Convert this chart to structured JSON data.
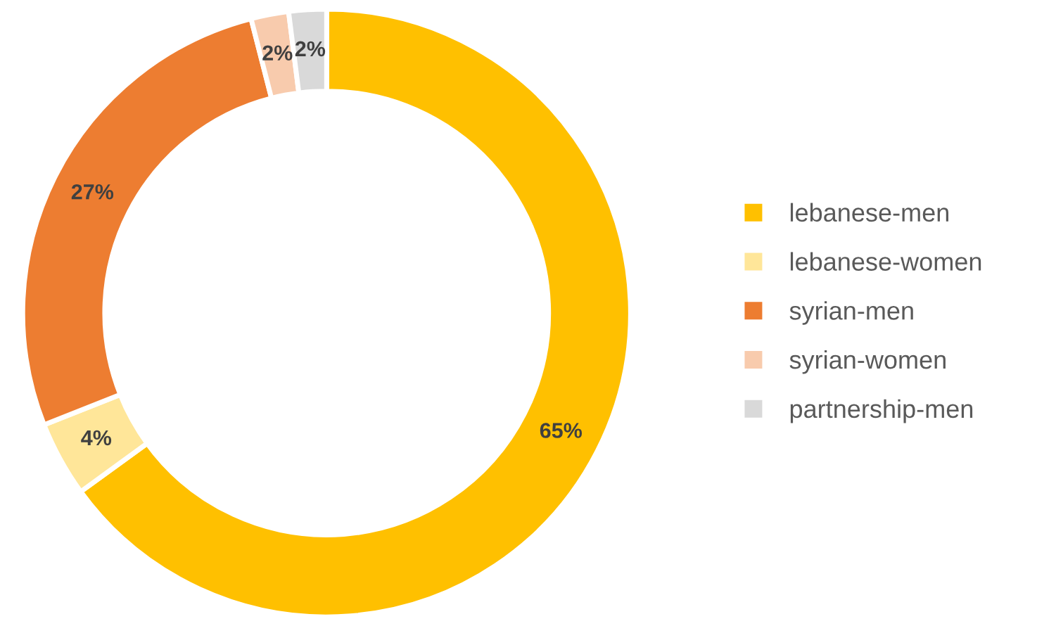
{
  "chart_data": {
    "type": "donut",
    "categories": [
      "lebanese-men",
      "lebanese-women",
      "syrian-men",
      "syrian-women",
      "partnership-men"
    ],
    "values": [
      65,
      4,
      27,
      2,
      2
    ],
    "colors": [
      "#ffc000",
      "#ffe699",
      "#ed7d31",
      "#f8cbad",
      "#d9d9d9"
    ],
    "value_labels": [
      "65%",
      "4%",
      "27%",
      "2%",
      "2%"
    ],
    "legend": "right"
  }
}
